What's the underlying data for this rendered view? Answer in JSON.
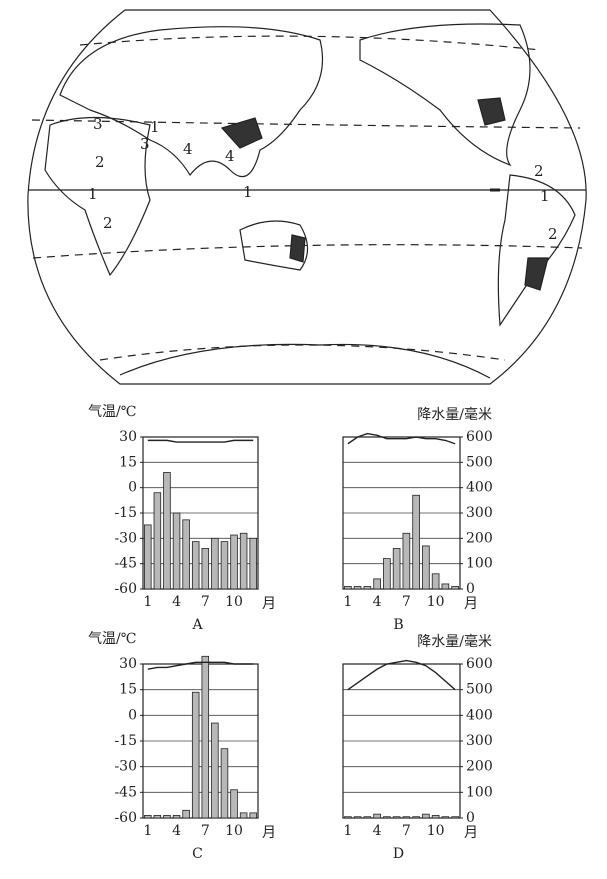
{
  "map": {
    "labels": [
      "3",
      "3",
      "1",
      "2",
      "4",
      "4",
      "1",
      "2",
      "1",
      "2",
      "1",
      "2"
    ]
  },
  "chart_data": [
    {
      "type": "bar-line",
      "title": "A",
      "y_label": "气温/℃",
      "x_label": "月",
      "categories": [
        "1",
        null,
        null,
        "4",
        null,
        null,
        "7",
        null,
        null,
        "10",
        null,
        null
      ],
      "ylim": [
        -60,
        30
      ],
      "yticks": [
        30,
        15,
        0,
        -15,
        -30,
        -45,
        -60
      ],
      "y2lim": [
        0,
        600
      ],
      "grid": true,
      "series": [
        {
          "type": "line",
          "color": "#222222",
          "values": [
            28,
            28,
            28,
            27,
            27,
            27,
            27,
            27,
            27,
            28,
            28,
            28
          ]
        },
        {
          "type": "bar",
          "axis": "y2",
          "color": "#b8b8b8",
          "values": [
            253,
            380,
            460,
            300,
            273,
            187,
            160,
            200,
            187,
            213,
            220,
            200
          ]
        }
      ]
    },
    {
      "type": "bar-line",
      "title": "B",
      "y2_label": "降水量/毫米",
      "x_label": "月",
      "categories": [
        "1",
        null,
        null,
        "4",
        null,
        null,
        "7",
        null,
        null,
        "10",
        null,
        null
      ],
      "ylim": [
        -60,
        30
      ],
      "y2lim": [
        0,
        600
      ],
      "y2ticks": [
        600,
        500,
        400,
        300,
        200,
        100,
        0
      ],
      "grid": true,
      "series": [
        {
          "type": "line",
          "color": "#222222",
          "values": [
            26,
            30,
            32,
            31,
            29,
            29,
            29,
            30,
            29,
            29,
            28,
            26
          ]
        },
        {
          "type": "bar",
          "axis": "y2",
          "color": "#b8b8b8",
          "values": [
            10,
            10,
            10,
            40,
            120,
            160,
            220,
            370,
            170,
            60,
            20,
            10
          ]
        }
      ]
    },
    {
      "type": "bar-line",
      "title": "C",
      "y_label": "气温/℃",
      "x_label": "月",
      "categories": [
        "1",
        null,
        null,
        "4",
        null,
        null,
        "7",
        null,
        null,
        "10",
        null,
        null
      ],
      "ylim": [
        -60,
        30
      ],
      "yticks": [
        30,
        15,
        0,
        -15,
        -30,
        -45,
        -60
      ],
      "y2lim": [
        0,
        600
      ],
      "grid": true,
      "series": [
        {
          "type": "line",
          "color": "#222222",
          "values": [
            27,
            28,
            28,
            29,
            30,
            31,
            31,
            31,
            31,
            30,
            30,
            30
          ]
        },
        {
          "type": "bar",
          "axis": "y2",
          "color": "#b8b8b8",
          "values": [
            10,
            10,
            10,
            10,
            30,
            490,
            630,
            370,
            270,
            110,
            20,
            20
          ]
        }
      ]
    },
    {
      "type": "bar-line",
      "title": "D",
      "y2_label": "降水量/毫米",
      "x_label": "月",
      "categories": [
        "1",
        null,
        null,
        "4",
        null,
        null,
        "7",
        null,
        null,
        "10",
        null,
        null
      ],
      "ylim": [
        -60,
        30
      ],
      "y2lim": [
        0,
        600
      ],
      "y2ticks": [
        600,
        500,
        400,
        300,
        200,
        100,
        0
      ],
      "grid": true,
      "series": [
        {
          "type": "line",
          "color": "#222222",
          "values": [
            15,
            19,
            23,
            27,
            30,
            31,
            32,
            31,
            29,
            25,
            20,
            15
          ]
        },
        {
          "type": "bar",
          "axis": "y2",
          "color": "#b8b8b8",
          "values": [
            5,
            5,
            5,
            15,
            5,
            5,
            5,
            5,
            15,
            10,
            5,
            5
          ]
        }
      ]
    }
  ]
}
